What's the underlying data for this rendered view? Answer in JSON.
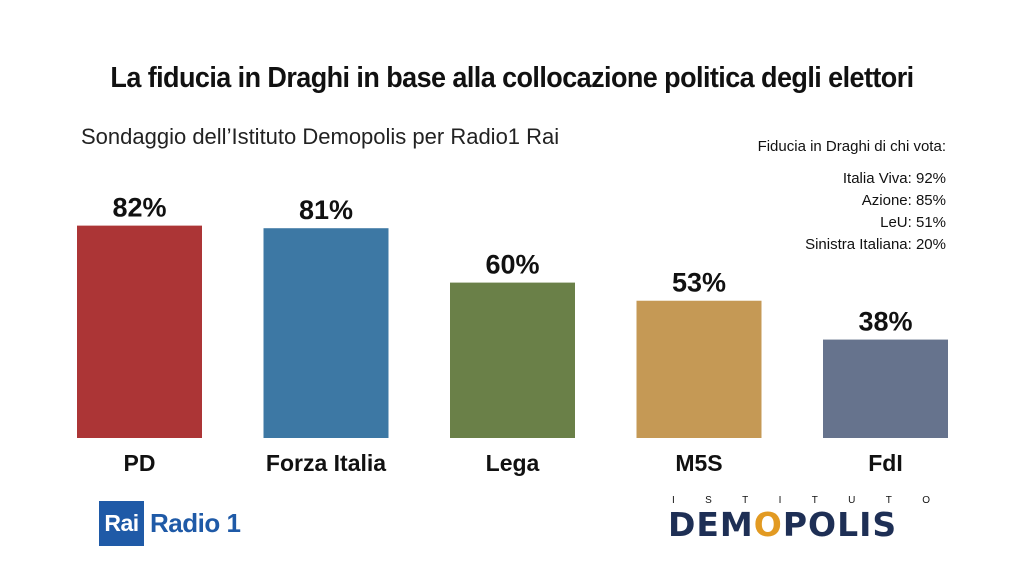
{
  "title": "La fiducia in Draghi in base alla collocazione politica degli elettori",
  "subtitle": "Sondaggio dell’Istituto Demopolis per Radio1 Rai",
  "side_note": {
    "heading": "Fiducia in Draghi di chi vota:",
    "lines": [
      "Italia Viva: 92%",
      "Azione: 85%",
      "LeU: 51%",
      "Sinistra Italiana: 20%"
    ]
  },
  "chart_data": {
    "type": "bar",
    "categories": [
      "PD",
      "Forza Italia",
      "Lega",
      "M5S",
      "FdI"
    ],
    "values": [
      82,
      81,
      60,
      53,
      38
    ],
    "data_labels": [
      "82%",
      "81%",
      "60%",
      "53%",
      "38%"
    ],
    "colors": [
      "#ac3536",
      "#3d78a4",
      "#6a8048",
      "#c59955",
      "#66738d"
    ],
    "title": "La fiducia in Draghi in base alla collocazione politica degli elettori",
    "subtitle": "Sondaggio dell’Istituto Demopolis per Radio1 Rai",
    "xlabel": "",
    "ylabel": "",
    "ylim": [
      0,
      100
    ],
    "grid": false,
    "legend": "none"
  },
  "logos": {
    "rai_box": "Rai",
    "rai_name": "Radio 1",
    "demopolis_top": [
      "I",
      "S",
      "T",
      "I",
      "T",
      "U",
      "T",
      "O"
    ],
    "demopolis_main_a": "DEM",
    "demopolis_main_o": "O",
    "demopolis_main_b": "POLIS"
  }
}
